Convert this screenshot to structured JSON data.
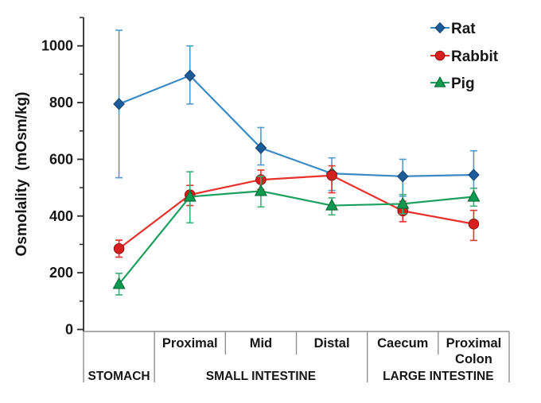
{
  "chart_data": {
    "type": "line",
    "title": "",
    "ylabel": "Osmolality  (mOsm/kg)",
    "ylim": [
      0,
      1100
    ],
    "yticks_major": [
      0,
      200,
      400,
      600,
      800,
      1000
    ],
    "yticks_minor": [
      100,
      300,
      500,
      700,
      900,
      1100
    ],
    "grid": "off",
    "legend_position": "top-right",
    "x_axis": {
      "sub_labels": [
        "",
        "Proximal",
        "Mid",
        "Distal",
        "Caecum",
        "Proximal\nColon"
      ],
      "groups": [
        {
          "label": "STOMACH",
          "start": 0,
          "end": 1
        },
        {
          "label": "SMALL INTESTINE",
          "start": 1,
          "end": 4
        },
        {
          "label": "LARGE INTESTINE",
          "start": 4,
          "end": 6
        }
      ]
    },
    "series": [
      {
        "name": "Rat",
        "marker": "diamond",
        "color_line": "#3a8ac5",
        "color_err": "#4d9ccf",
        "color_fill": "#1c5c99",
        "color_edge": "#123f6b",
        "values": [
          795,
          895,
          640,
          550,
          540,
          545
        ],
        "err_low": [
          535,
          795,
          580,
          490,
          470,
          460
        ],
        "err_high": [
          1055,
          1000,
          712,
          605,
          600,
          630
        ]
      },
      {
        "name": "Rabbit",
        "marker": "circle",
        "color_line": "#e8302b",
        "color_err": "#e8302b",
        "color_fill": "#d6201f",
        "color_edge": "#8f1010",
        "values": [
          285,
          475,
          528,
          543,
          418,
          372
        ],
        "err_low": [
          255,
          437,
          494,
          482,
          380,
          314
        ],
        "err_high": [
          315,
          508,
          562,
          577,
          452,
          420
        ]
      },
      {
        "name": "Pig",
        "marker": "triangle",
        "color_line": "#1ba05e",
        "color_err": "#3dae77",
        "color_fill": "#0c9a51",
        "color_edge": "#07612f",
        "values": [
          160,
          468,
          488,
          437,
          443,
          468
        ],
        "err_low": [
          122,
          376,
          432,
          404,
          408,
          435
        ],
        "err_high": [
          198,
          556,
          540,
          464,
          476,
          498
        ]
      }
    ]
  }
}
